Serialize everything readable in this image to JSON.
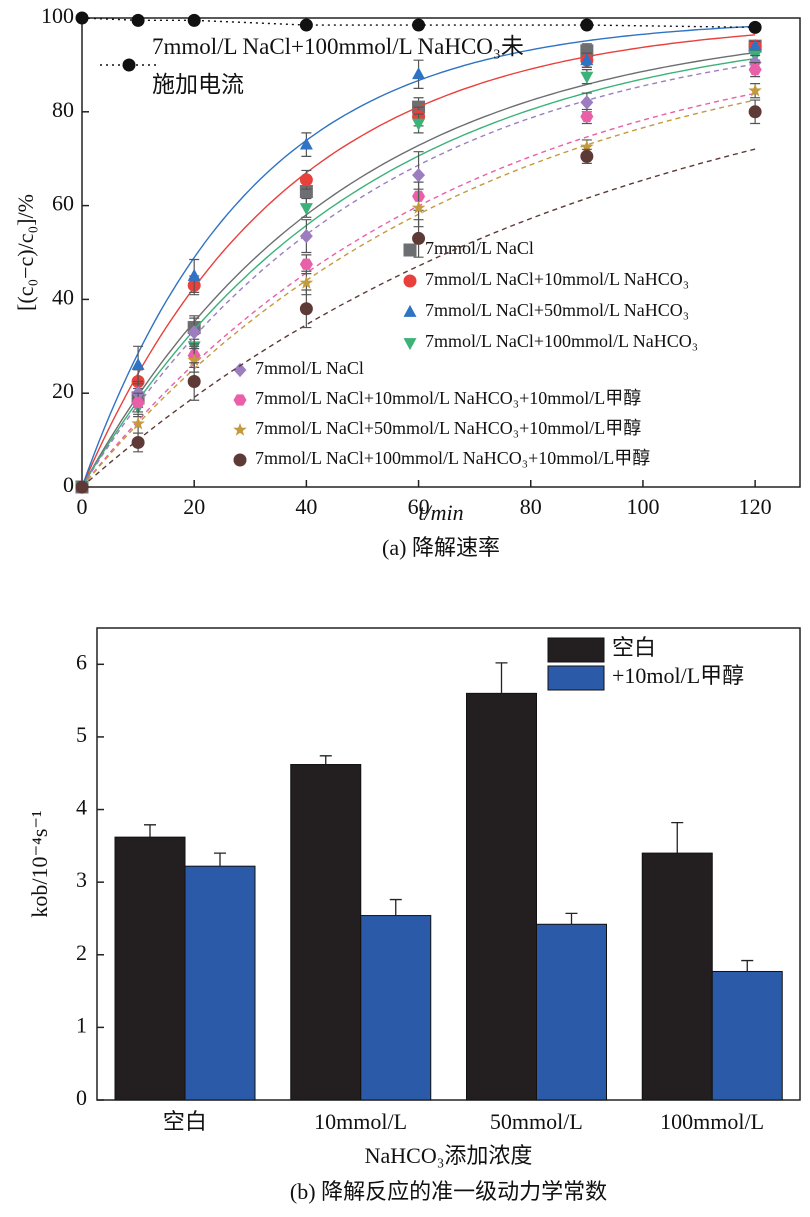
{
  "chart_data": [
    {
      "type": "scatter",
      "caption": "(a) 降解速率",
      "xlabel": "t/min",
      "ylabel": "[(c₀−c)/c₀]/%",
      "x": [
        0,
        10,
        20,
        40,
        60,
        90,
        120
      ],
      "xlim": [
        0,
        128
      ],
      "xticks": [
        0,
        20,
        40,
        60,
        80,
        100,
        120
      ],
      "ylim": [
        0,
        100
      ],
      "yticks": [
        0,
        20,
        40,
        60,
        80,
        100
      ],
      "series": [
        {
          "name": "7mmol/L NaCl",
          "color": "#6d6e71",
          "marker": "square",
          "line_style": "solid",
          "values": [
            0,
            19,
            34,
            63,
            81,
            93,
            94
          ],
          "errors": [
            0,
            2,
            2.5,
            3,
            2,
            1.5,
            1
          ]
        },
        {
          "name": "7mmol/L NaCl+10mmol/L NaHCO₃",
          "color": "#e8413c",
          "marker": "circle",
          "line_style": "solid",
          "values": [
            0,
            22.5,
            43,
            65.5,
            79,
            91,
            94
          ],
          "errors": [
            0,
            2.5,
            2,
            2,
            2,
            1.5,
            1
          ]
        },
        {
          "name": "7mmol/L NaCl+50mmol/L NaHCO₃",
          "color": "#2e73c4",
          "marker": "triangle-up",
          "line_style": "solid",
          "values": [
            0,
            26,
            45,
            73,
            88,
            91,
            94
          ],
          "errors": [
            0,
            4,
            3.5,
            2.5,
            3,
            1.5,
            1
          ]
        },
        {
          "name": "7mmol/L NaCl+100mmol/L NaHCO₃",
          "color": "#3ab278",
          "marker": "triangle-down",
          "line_style": "solid",
          "values": [
            0,
            17,
            30,
            59.5,
            77.5,
            87.5,
            92
          ],
          "errors": [
            0,
            2,
            2.5,
            2,
            2,
            1.5,
            1
          ]
        },
        {
          "name": "7mmol/L NaCl",
          "color": "#9c7ec0",
          "marker": "diamond",
          "line_style": "dashed",
          "values": [
            0,
            20,
            33,
            53.5,
            66.5,
            82,
            90.5
          ],
          "errors": [
            0,
            2.5,
            3,
            3.5,
            5,
            2,
            1.5
          ]
        },
        {
          "name": "7mmol/L NaCl+10mmol/L NaHCO₃+10mmol/L甲醇",
          "color": "#e95fa8",
          "marker": "hexagon",
          "line_style": "dashed",
          "values": [
            0,
            18,
            28,
            47.5,
            62,
            79,
            89
          ],
          "errors": [
            0,
            2,
            2.5,
            2,
            3,
            1.5,
            1.5
          ]
        },
        {
          "name": "7mmol/L NaCl+50mmol/L NaHCO₃+10mmol/L甲醇",
          "color": "#c49a3c",
          "marker": "star",
          "line_style": "dashed",
          "values": [
            0,
            13.5,
            27,
            43.5,
            59.5,
            72.5,
            84.5
          ],
          "errors": [
            0,
            2,
            2.5,
            2.5,
            4,
            1.5,
            1.5
          ]
        },
        {
          "name": "7mmol/L NaCl+100mmol/L NaHCO₃+10mmol/L甲醇",
          "color": "#5e3a36",
          "marker": "circle",
          "line_style": "dashed",
          "values": [
            0,
            9.5,
            22.5,
            38,
            53,
            70.5,
            80
          ],
          "errors": [
            0,
            2,
            4,
            4,
            4,
            1.5,
            2.5
          ]
        },
        {
          "name": "7mmol/L NaCl+100mmol/L NaHCO₃未施加电流",
          "color": "#111111",
          "marker": "circle",
          "line_style": "dotted",
          "values": [
            100,
            99.5,
            99.5,
            98.5,
            98.5,
            98.5,
            98
          ]
        }
      ]
    },
    {
      "type": "bar",
      "caption": "(b) 降解反应的准一级动力学常数",
      "xlabel": "NaHCO₃添加浓度",
      "ylabel": "kob/10⁻⁴s⁻¹",
      "categories": [
        "空白",
        "10mmol/L",
        "50mmol/L",
        "100mmol/L"
      ],
      "ylim": [
        0,
        6.5
      ],
      "yticks": [
        0,
        1,
        2,
        3,
        4,
        5,
        6
      ],
      "legend": "upper right",
      "series": [
        {
          "name": "空白",
          "color": "#231f20",
          "values": [
            3.62,
            4.62,
            5.6,
            3.4
          ],
          "errors": [
            0.17,
            0.12,
            0.42,
            0.42
          ]
        },
        {
          "name": "+10mol/L甲醇",
          "color": "#2b5aa8",
          "values": [
            3.22,
            2.54,
            2.42,
            1.77
          ],
          "errors": [
            0.18,
            0.22,
            0.15,
            0.15
          ]
        }
      ]
    }
  ]
}
